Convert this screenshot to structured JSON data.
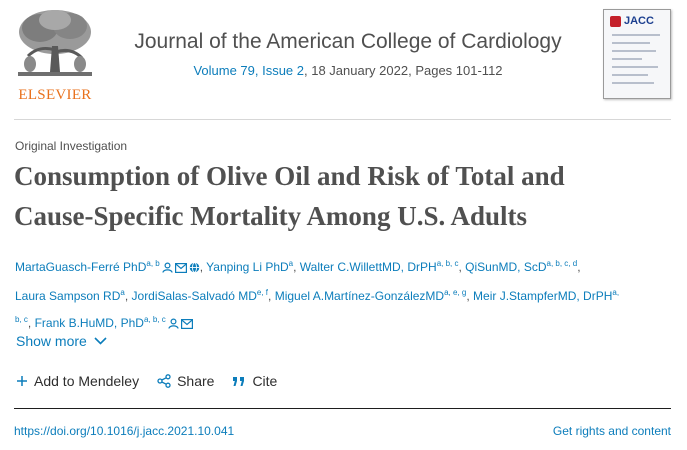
{
  "header": {
    "publisher_name": "ELSEVIER",
    "journal_title": "Journal of the American College of Cardiology",
    "issue_link": "Volume 79, Issue 2",
    "issue_rest": ", 18 January 2022, Pages 101-112",
    "cover_title": "JACC"
  },
  "article": {
    "type": "Original Investigation",
    "title_lines": [
      "Consumption of Olive Oil and Risk of Total and",
      "Cause-Specific Mortality Among U.S. Adults"
    ]
  },
  "authors": [
    {
      "name": "MartaGuasch-Ferré PhD",
      "sup": "a, b",
      "icons": [
        "person-icon",
        "envelope-icon",
        "globe-icon"
      ]
    },
    {
      "name": "Yanping Li PhD",
      "sup": "a",
      "icons": []
    },
    {
      "name": "Walter C.WillettMD, DrPH",
      "sup": "a, b, c",
      "icons": []
    },
    {
      "name": "QiSunMD, ScD",
      "sup": "a, b, c, d",
      "icons": []
    },
    {
      "name": "Laura Sampson RD",
      "sup": "a",
      "icons": []
    },
    {
      "name": "JordiSalas-Salvadó MD",
      "sup": "e, f",
      "icons": []
    },
    {
      "name": "Miguel A.Martínez-GonzálezMD",
      "sup": "a, e, g",
      "icons": []
    },
    {
      "name": "Meir J.StampferMD, DrPH",
      "sup": "a, b, c",
      "icons": []
    },
    {
      "name": "Frank B.HuMD, PhD",
      "sup": "a, b, c",
      "icons": [
        "person-icon",
        "envelope-icon"
      ]
    }
  ],
  "show_more_label": "Show more",
  "actions": {
    "mendeley": "Add to Mendeley",
    "share": "Share",
    "cite": "Cite"
  },
  "footer": {
    "doi": "https://doi.org/10.1016/j.jacc.2021.10.041",
    "rights": "Get rights and content"
  },
  "colors": {
    "link": "#0c7dbb",
    "text": "#505050",
    "publisher_orange": "#e9711c"
  }
}
